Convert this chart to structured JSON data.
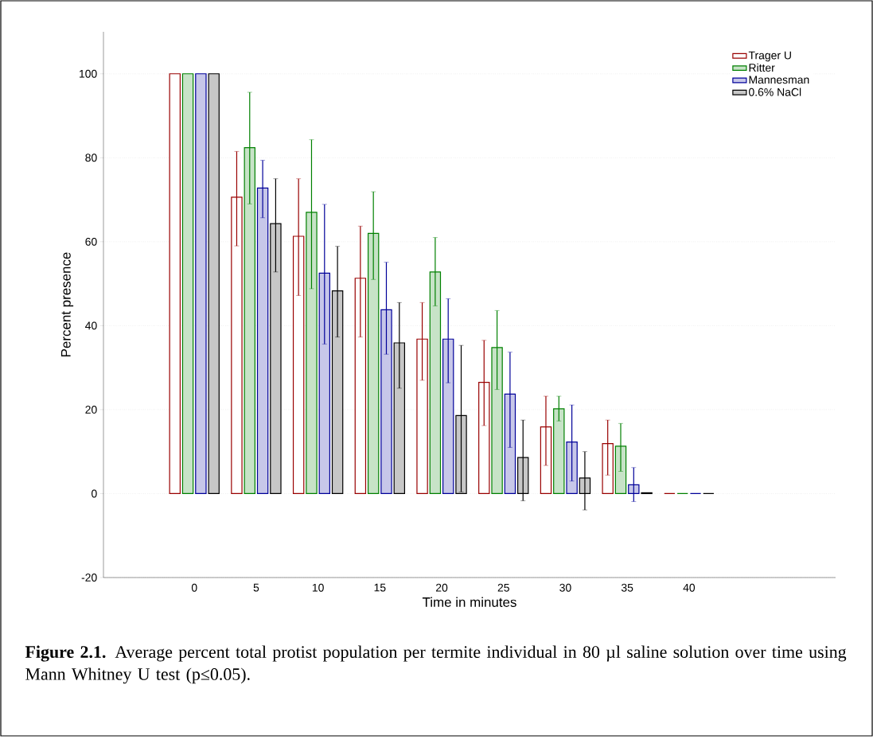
{
  "chart_data": {
    "type": "bar",
    "xlabel": "Time in minutes",
    "ylabel": "Percent presence",
    "categories": [
      "0",
      "5",
      "10",
      "15",
      "20",
      "25",
      "30",
      "35",
      "40"
    ],
    "series": [
      {
        "name": "Trager U",
        "color": "#990000",
        "values": [
          100,
          70.6,
          61.3,
          51.3,
          36.8,
          26.5,
          15.9,
          11.9,
          0
        ],
        "errors": [
          null,
          [
            59,
            81.5
          ],
          [
            47.2,
            75
          ],
          [
            37.3,
            63.7
          ],
          [
            27,
            45.5
          ],
          [
            16.2,
            36.5
          ],
          [
            6.7,
            23.2
          ],
          [
            4.4,
            17.5
          ],
          null
        ]
      },
      {
        "name": "Ritter",
        "color": "#008000",
        "values": [
          100,
          82.4,
          67,
          62,
          52.8,
          34.8,
          20.2,
          11.3,
          0
        ],
        "errors": [
          null,
          [
            69,
            95.6
          ],
          [
            48.8,
            84.3
          ],
          [
            51,
            71.9
          ],
          [
            44.7,
            61
          ],
          [
            24.8,
            43.6
          ],
          [
            17.3,
            23.2
          ],
          [
            5.3,
            16.7
          ],
          null
        ]
      },
      {
        "name": "Mannesman",
        "color": "#000099",
        "values": [
          100,
          72.8,
          52.5,
          43.8,
          36.8,
          23.7,
          12.3,
          2.1,
          0
        ],
        "errors": [
          null,
          [
            65.7,
            79.4
          ],
          [
            35.6,
            68.9
          ],
          [
            33.2,
            55.1
          ],
          [
            26.4,
            46.4
          ],
          [
            11,
            33.7
          ],
          [
            3,
            21.1
          ],
          [
            -1.9,
            6.2
          ],
          null
        ]
      },
      {
        "name": "0.6% NaCl",
        "color": "#000000",
        "values": [
          100,
          64.3,
          48.3,
          35.9,
          18.6,
          8.6,
          3.7,
          0.2,
          0
        ],
        "errors": [
          null,
          [
            52.8,
            75
          ],
          [
            37.3,
            58.9
          ],
          [
            25.1,
            45.5
          ],
          [
            0.4,
            35.3
          ],
          [
            -1.7,
            17.5
          ],
          [
            -3.9,
            10
          ],
          null,
          null
        ]
      }
    ],
    "ylim": [
      -20,
      110
    ],
    "yticks": [
      -20,
      0,
      20,
      40,
      60,
      80,
      100
    ],
    "grid": "y",
    "legend": "top right",
    "annotations": [
      "**Figure 2.1.** Average percent total protist population per termite individual in 80 µl saline solution over time using Mann Whitney U test (p≤0.05)."
    ]
  }
}
